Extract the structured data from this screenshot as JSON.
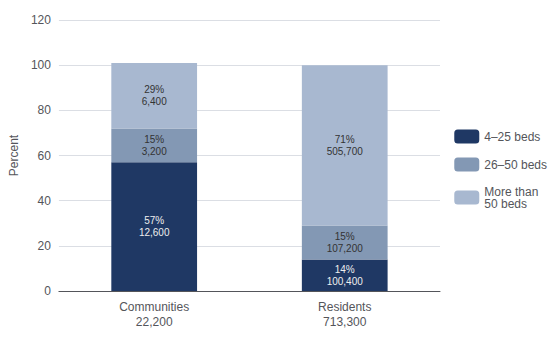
{
  "chart_data": {
    "type": "bar",
    "stacked": true,
    "categories": [
      "Communities\n22,200",
      "Residents\n713,300"
    ],
    "series": [
      {
        "name": "4–25 beds",
        "color": "#1F3864",
        "values": [
          57,
          14
        ],
        "value_labels": [
          "57%\n12,600",
          "14%\n100,400"
        ]
      },
      {
        "name": "26–50 beds",
        "color": "#8398B4",
        "values": [
          15,
          15
        ],
        "value_labels": [
          "15%\n3,200",
          "15%\n107,200"
        ]
      },
      {
        "name": "More than\n50 beds",
        "color": "#A8B8D0",
        "values": [
          29,
          71
        ],
        "value_labels": [
          "29%\n6,400",
          "71%\n505,700"
        ]
      }
    ],
    "ylabel": "Percent",
    "ylim": [
      0,
      120
    ],
    "yticks": [
      0,
      20,
      40,
      60,
      80,
      100,
      120
    ],
    "grid": true,
    "legend": "right",
    "data_labels": true
  }
}
